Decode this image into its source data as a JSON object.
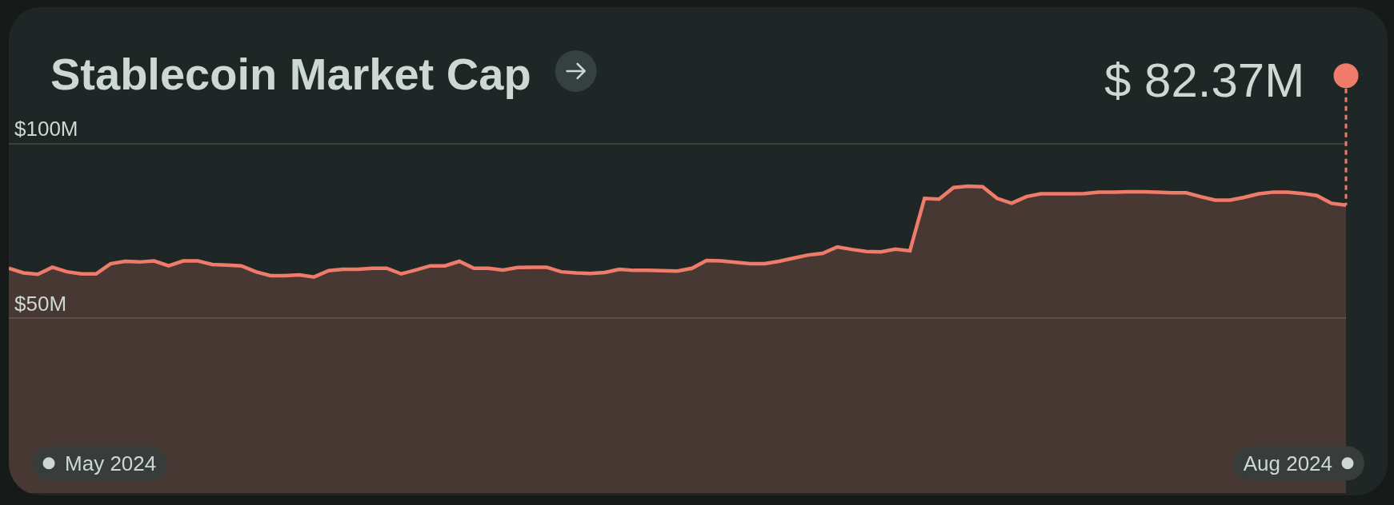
{
  "chart_data": {
    "type": "area",
    "title": "Stablecoin Market Cap",
    "color": "#ef7b6a",
    "x": [
      "2024-05-10",
      "2024-05-11",
      "2024-05-12",
      "2024-05-13",
      "2024-05-14",
      "2024-05-15",
      "2024-05-16",
      "2024-05-17",
      "2024-05-18",
      "2024-05-19",
      "2024-05-20",
      "2024-05-21",
      "2024-05-22",
      "2024-05-23",
      "2024-05-24",
      "2024-05-25",
      "2024-05-26",
      "2024-05-27",
      "2024-05-28",
      "2024-05-29",
      "2024-05-30",
      "2024-05-31",
      "2024-06-01",
      "2024-06-02",
      "2024-06-03",
      "2024-06-04",
      "2024-06-05",
      "2024-06-06",
      "2024-06-07",
      "2024-06-08",
      "2024-06-09",
      "2024-06-10",
      "2024-06-11",
      "2024-06-12",
      "2024-06-13",
      "2024-06-14",
      "2024-06-15",
      "2024-06-16",
      "2024-06-17",
      "2024-06-18",
      "2024-06-19",
      "2024-06-20",
      "2024-06-21",
      "2024-06-22",
      "2024-06-23",
      "2024-06-24",
      "2024-06-25",
      "2024-06-26",
      "2024-06-27",
      "2024-06-28",
      "2024-06-29",
      "2024-06-30",
      "2024-07-01",
      "2024-07-02",
      "2024-07-03",
      "2024-07-04",
      "2024-07-05",
      "2024-07-06",
      "2024-07-07",
      "2024-07-08",
      "2024-07-09",
      "2024-07-10",
      "2024-07-11",
      "2024-07-12",
      "2024-07-13",
      "2024-07-14",
      "2024-07-15",
      "2024-07-16",
      "2024-07-17",
      "2024-07-18",
      "2024-07-19",
      "2024-07-20",
      "2024-07-21",
      "2024-07-22",
      "2024-07-23",
      "2024-07-24",
      "2024-07-25",
      "2024-07-26",
      "2024-07-27",
      "2024-07-28",
      "2024-07-29",
      "2024-07-30",
      "2024-07-31",
      "2024-08-01",
      "2024-08-02",
      "2024-08-03",
      "2024-08-04",
      "2024-08-05",
      "2024-08-06",
      "2024-08-07",
      "2024-08-08",
      "2024-08-09",
      "2024-08-10"
    ],
    "values": [
      64.3,
      63.0,
      62.6,
      64.6,
      63.3,
      62.7,
      62.7,
      65.6,
      66.3,
      66.1,
      66.4,
      65.0,
      66.4,
      66.4,
      65.4,
      65.2,
      65.0,
      63.3,
      62.2,
      62.2,
      62.4,
      61.8,
      63.6,
      64.0,
      64.0,
      64.3,
      64.3,
      62.7,
      63.8,
      65.0,
      65.0,
      66.3,
      64.3,
      64.3,
      63.8,
      64.5,
      64.6,
      64.6,
      63.3,
      63.0,
      62.8,
      63.1,
      64.0,
      63.7,
      63.7,
      63.6,
      63.5,
      64.3,
      66.5,
      66.4,
      66.0,
      65.6,
      65.6,
      66.3,
      67.2,
      68.1,
      68.6,
      70.4,
      69.7,
      69.1,
      69.0,
      69.8,
      69.3,
      84.3,
      84.1,
      87.4,
      87.8,
      87.6,
      84.3,
      82.9,
      84.8,
      85.6,
      85.6,
      85.6,
      85.7,
      86.1,
      86.1,
      86.2,
      86.2,
      86.1,
      85.9,
      85.9,
      84.8,
      83.8,
      83.8,
      84.6,
      85.6,
      86.1,
      86.1,
      85.7,
      85.1,
      82.9,
      82.37
    ],
    "xlim": [
      "2024-05-10",
      "2024-08-10"
    ],
    "xticks": [
      {
        "value": "2024-05-17",
        "label": "May 2024"
      },
      {
        "value": "2024-08-06",
        "label": "Aug 2024"
      }
    ],
    "ylim": [
      0,
      139
    ],
    "yticks": [
      {
        "value": 50,
        "label": "$50M"
      },
      {
        "value": 100,
        "label": "$100M"
      }
    ],
    "grid": "y",
    "annotations": [
      {
        "text": "$ 82.37M",
        "x": "2024-08-10",
        "y": 82.37
      }
    ]
  }
}
